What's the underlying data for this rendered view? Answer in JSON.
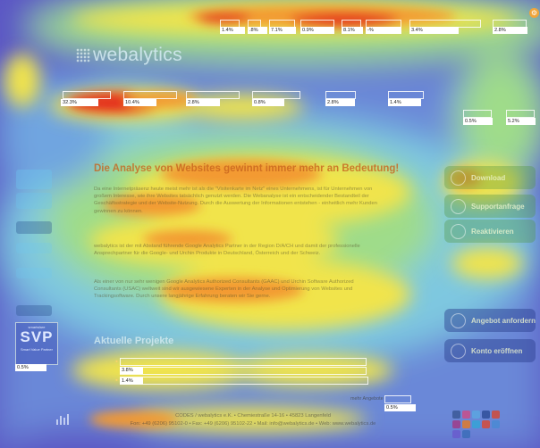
{
  "header": {
    "logo_text": "webalytics",
    "nav_items": [
      {
        "percent": "1.4%"
      },
      {
        "percent": ".8%"
      },
      {
        "percent": "7.1%"
      },
      {
        "percent": "0.9%"
      },
      {
        "percent": "8.1%"
      },
      {
        "percent": "-%"
      },
      {
        "percent": "3.4%"
      },
      {
        "percent": "2.8%"
      }
    ],
    "subnav_items": [
      {
        "percent": "32.3%"
      },
      {
        "percent": "10.4%"
      },
      {
        "percent": "2.8%"
      },
      {
        "percent": "0.8%"
      },
      {
        "percent": "2.8%"
      },
      {
        "percent": "1.4%"
      }
    ],
    "right_items": [
      {
        "percent": "0.5%"
      },
      {
        "percent": "5.2%"
      }
    ]
  },
  "main": {
    "headline": "Die Analyse von Websites gewinnt immer mehr an Bedeutung!",
    "paragraphs": [
      "Da eine Internetpräsenz heute meist mehr ist als die \"Visitenkarte im Netz\" eines Unternehmens, ist für Unternehmen von großem Interesse, wie ihre Websites tatsächlich genutzt werden. Die Webanalyse ist ein entscheidender Bestandteil der Geschäftsstrategie und der Website-Nutzung. Durch die Auswertung der Informationen entstehen - einheitlich mehr Kunden gewinnen zu können.",
      "webalytics ist der mit Abstand führende Google Analytics Partner in der Region D/A/CH und damit der professionelle Ansprechpartner für die Google- und Urchin Produkte in Deutschland, Österreich und der Schweiz.",
      "Als einer von nur sehr wenigen Google Analytics Authorized Consultants (GAAC) und Urchin Software Authorized Consultants (USAC) weltweit sind wir ausgewiesene Experten in der Analyse und Optimierung von Websites und Trackingsoftware. Durch unsere langjährige Erfahrung beraten wir Sie gerne."
    ],
    "projects_title": "Aktuelle Projekte",
    "projects": [
      {
        "percent": "3.8%"
      },
      {
        "percent": "1.4%"
      }
    ],
    "more_label": "mehr Angebote",
    "more_percent": "0.5%"
  },
  "sidebar_left": {
    "badge_top": "smartsfare",
    "badge_main": "SVP",
    "badge_sub": "Smart Value Partner",
    "badge_percent": "0.5%",
    "items": [
      "",
      "",
      "",
      "",
      "",
      ""
    ]
  },
  "sidebar_right": {
    "buttons": [
      {
        "label": "Download"
      },
      {
        "label": "Supportanfrage"
      },
      {
        "label": "Reaktivieren"
      },
      {
        "label": "Angebot anfordern"
      },
      {
        "label": "Konto eröffnen"
      }
    ]
  },
  "footer": {
    "line1": "CODES / webalytics e.K. • Chemiestraße 14-16 • 45823 Langenfeld",
    "line2": "Fon: +49 (6206) 95102-0 • Fax: +49 (6206) 95102-22 • Mail: info@webalytics.de • Web: www.webalytics.de"
  },
  "colors": {
    "heat_base": "#5b57c4",
    "heat_blue": "#6fa5e0",
    "heat_cyan": "#7fd9d9",
    "heat_green": "#a7df7a",
    "heat_yellow": "#f1e44c",
    "heat_orange": "#f39a31",
    "heat_red": "#e5311f"
  }
}
